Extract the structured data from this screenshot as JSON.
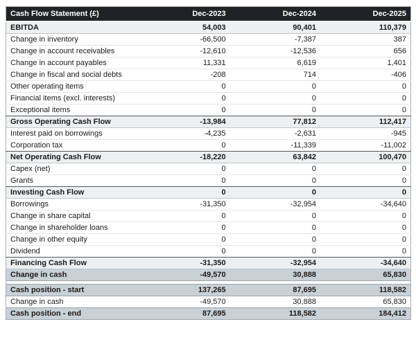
{
  "table": {
    "title": "Cash Flow Statement (£)",
    "columns": [
      "Dec-2023",
      "Dec-2024",
      "Dec-2025"
    ],
    "rows": [
      {
        "label": "EBITDA",
        "values": [
          "54,003",
          "90,401",
          "110,379"
        ],
        "style": "subtotal"
      },
      {
        "label": "Change in inventory",
        "values": [
          "-66,500",
          "-7,387",
          "387"
        ],
        "style": "normal"
      },
      {
        "label": "Change in account receivables",
        "values": [
          "-12,610",
          "-12,536",
          "656"
        ],
        "style": "normal"
      },
      {
        "label": "Change in account payables",
        "values": [
          "11,331",
          "6,619",
          "1,401"
        ],
        "style": "normal"
      },
      {
        "label": "Change in fiscal and social debts",
        "values": [
          "-208",
          "714",
          "-406"
        ],
        "style": "normal"
      },
      {
        "label": "Other operating items",
        "values": [
          "0",
          "0",
          "0"
        ],
        "style": "normal"
      },
      {
        "label": "Financial items (excl. interests)",
        "values": [
          "0",
          "0",
          "0"
        ],
        "style": "normal"
      },
      {
        "label": "Exceptional items",
        "values": [
          "0",
          "0",
          "0"
        ],
        "style": "normal"
      },
      {
        "label": "Gross Operating Cash Flow",
        "values": [
          "-13,984",
          "77,812",
          "112,417"
        ],
        "style": "subtotal"
      },
      {
        "label": "Interest paid on borrowings",
        "values": [
          "-4,235",
          "-2,631",
          "-945"
        ],
        "style": "normal"
      },
      {
        "label": "Corporation tax",
        "values": [
          "0",
          "-11,339",
          "-11,002"
        ],
        "style": "normal"
      },
      {
        "label": "Net Operating Cash Flow",
        "values": [
          "-18,220",
          "63,842",
          "100,470"
        ],
        "style": "subtotal"
      },
      {
        "label": "Capex (net)",
        "values": [
          "0",
          "0",
          "0"
        ],
        "style": "normal"
      },
      {
        "label": "Grants",
        "values": [
          "0",
          "0",
          "0"
        ],
        "style": "normal"
      },
      {
        "label": "Investing Cash Flow",
        "values": [
          "0",
          "0",
          "0"
        ],
        "style": "subtotal"
      },
      {
        "label": "Borrowings",
        "values": [
          "-31,350",
          "-32,954",
          "-34,640"
        ],
        "style": "normal"
      },
      {
        "label": "Change in share capital",
        "values": [
          "0",
          "0",
          "0"
        ],
        "style": "normal"
      },
      {
        "label": "Change in shareholder loans",
        "values": [
          "0",
          "0",
          "0"
        ],
        "style": "normal"
      },
      {
        "label": "Change in other equity",
        "values": [
          "0",
          "0",
          "0"
        ],
        "style": "normal"
      },
      {
        "label": "Dividend",
        "values": [
          "0",
          "0",
          "0"
        ],
        "style": "normal"
      },
      {
        "label": "Financing Cash Flow",
        "values": [
          "-31,350",
          "-32,954",
          "-34,640"
        ],
        "style": "subtotal"
      },
      {
        "label": "Change in cash",
        "values": [
          "-49,570",
          "30,888",
          "65,830"
        ],
        "style": "cash"
      },
      {
        "label": "",
        "values": [],
        "style": "spacer"
      },
      {
        "label": "Cash position - start",
        "values": [
          "137,265",
          "87,695",
          "118,582"
        ],
        "style": "cash"
      },
      {
        "label": "Change in cash",
        "values": [
          "-49,570",
          "30,888",
          "65,830"
        ],
        "style": "normal"
      },
      {
        "label": "Cash position - end",
        "values": [
          "87,695",
          "118,582",
          "184,412"
        ],
        "style": "cash"
      }
    ]
  },
  "colors": {
    "header_bg": "#202325",
    "header_text": "#ffffff",
    "subtotal_bg": "#edeff1",
    "cash_bg": "#c9d0d6",
    "row_border": "#e2e4e6",
    "dark_border": "#55595c",
    "outer_border": "#a8aeb4",
    "text": "#1a1a1a"
  }
}
